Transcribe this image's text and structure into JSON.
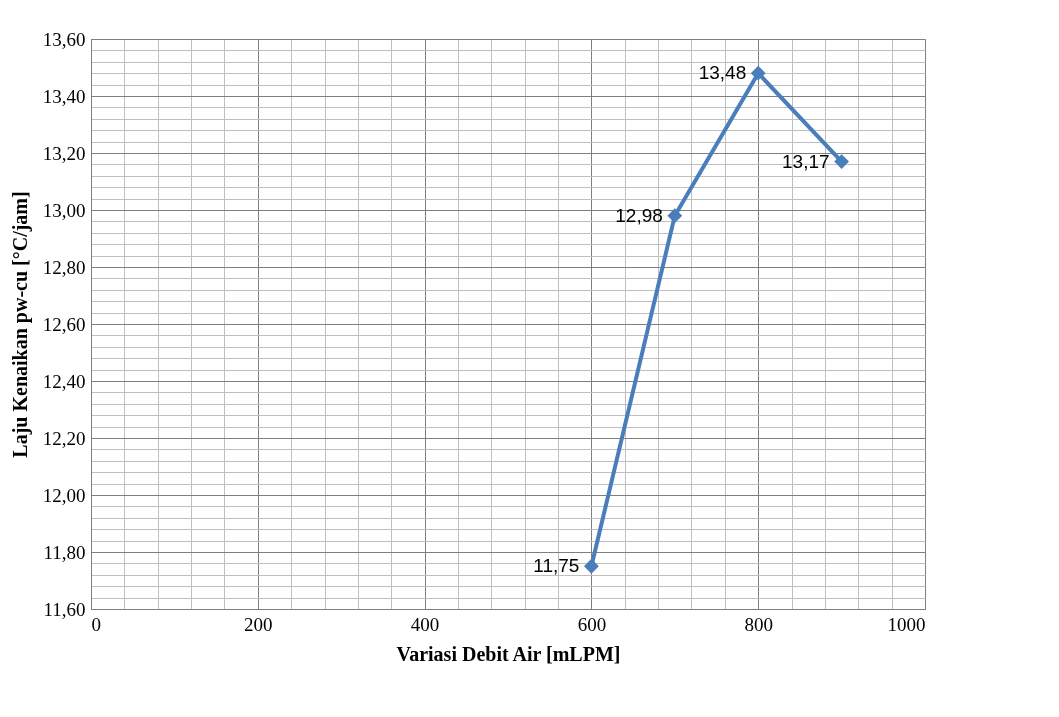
{
  "chart_data": {
    "type": "line",
    "xlabel": "Variasi Debit Air [mLPM]",
    "ylabel": "Laju Kenaikan pw-cu [°C/jam]",
    "x": [
      600,
      700,
      800,
      900
    ],
    "series": [
      {
        "color": "#4a7ebb",
        "values": [
          11.75,
          12.98,
          13.48,
          13.17
        ],
        "value_labels": [
          "11,75",
          "12,98",
          "13,48",
          "13,17"
        ]
      }
    ],
    "xlim": [
      0,
      1000
    ],
    "xticks": [
      0,
      200,
      400,
      600,
      800,
      1000
    ],
    "ylim": [
      11.6,
      13.6
    ],
    "yticks": [
      {
        "value": 11.6,
        "label": "11,60"
      },
      {
        "value": 11.8,
        "label": "11,80"
      },
      {
        "value": 12.0,
        "label": "12,00"
      },
      {
        "value": 12.2,
        "label": "12,20"
      },
      {
        "value": 12.4,
        "label": "12,40"
      },
      {
        "value": 12.6,
        "label": "12,60"
      },
      {
        "value": 12.8,
        "label": "12,80"
      },
      {
        "value": 13.0,
        "label": "13,00"
      },
      {
        "value": 13.2,
        "label": "13,20"
      },
      {
        "value": 13.4,
        "label": "13,40"
      },
      {
        "value": 13.6,
        "label": "13,60"
      }
    ],
    "grid": true,
    "marker": "diamond",
    "line_style": "solid",
    "legend": false
  }
}
